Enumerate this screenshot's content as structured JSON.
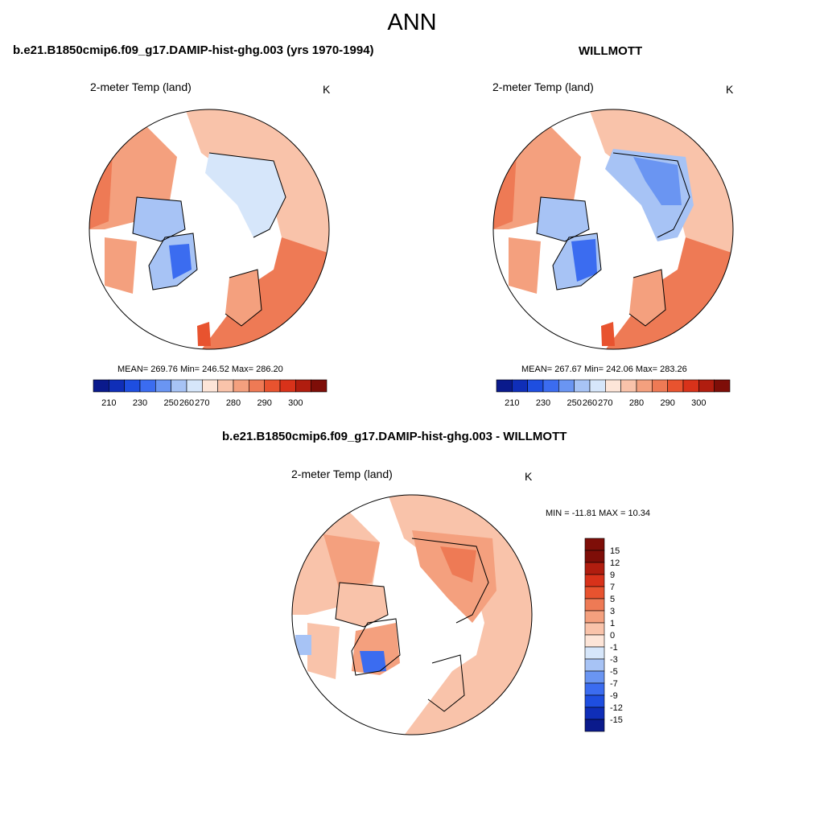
{
  "main_title": "ANN",
  "panels": [
    {
      "title": "b.e21.B1850cmip6.f09_g17.DAMIP-hist-ghg.003 (yrs 1970-1994)",
      "left_label": "2-meter Temp (land)",
      "right_label": "K",
      "stats": "MEAN= 269.76  Min= 246.52  Max= 286.20"
    },
    {
      "title": "WILLMOTT",
      "left_label": "2-meter Temp (land)",
      "right_label": "K",
      "stats": "MEAN= 267.67  Min= 242.06  Max= 283.26"
    },
    {
      "title": "b.e21.B1850cmip6.f09_g17.DAMIP-hist-ghg.003 - WILLMOTT",
      "left_label": "2-meter Temp (land)",
      "right_label": "K",
      "stats": "MIN = -11.81 MAX =  10.34"
    }
  ],
  "colorbar_abs": {
    "tick_labels": [
      "210",
      "230",
      "250",
      "260",
      "270",
      "280",
      "290",
      "300"
    ],
    "colors": [
      "#0a1a8c",
      "#0f2eb8",
      "#1e4ee0",
      "#3b6cf0",
      "#6a95f2",
      "#a7c3f5",
      "#d6e6fa",
      "#fde5d8",
      "#f9c3aa",
      "#f4a07e",
      "#ee7a55",
      "#e8532f",
      "#d8321a",
      "#b01d0f",
      "#7e0e08"
    ]
  },
  "colorbar_diff": {
    "tick_labels": [
      "15",
      "12",
      "9",
      "7",
      "5",
      "3",
      "1",
      "0",
      "-1",
      "-3",
      "-5",
      "-7",
      "-9",
      "-12",
      "-15"
    ],
    "colors": [
      "#7e0e08",
      "#b01d0f",
      "#d8321a",
      "#e8532f",
      "#ee7a55",
      "#f4a07e",
      "#f9c3aa",
      "#fde5d8",
      "#d6e6fa",
      "#a7c3f5",
      "#6a95f2",
      "#3b6cf0",
      "#1e4ee0",
      "#0f2eb8",
      "#0a1a8c"
    ]
  },
  "map_colors": {
    "ocean": "#ffffff",
    "warm_strong": "#ee7a55",
    "warm_mid": "#f4a07e",
    "warm_light": "#f9c3aa",
    "cool_light": "#d6e6fa",
    "cool_mid": "#a7c3f5",
    "cool_strong": "#3b6cf0",
    "coast": "#000000"
  }
}
